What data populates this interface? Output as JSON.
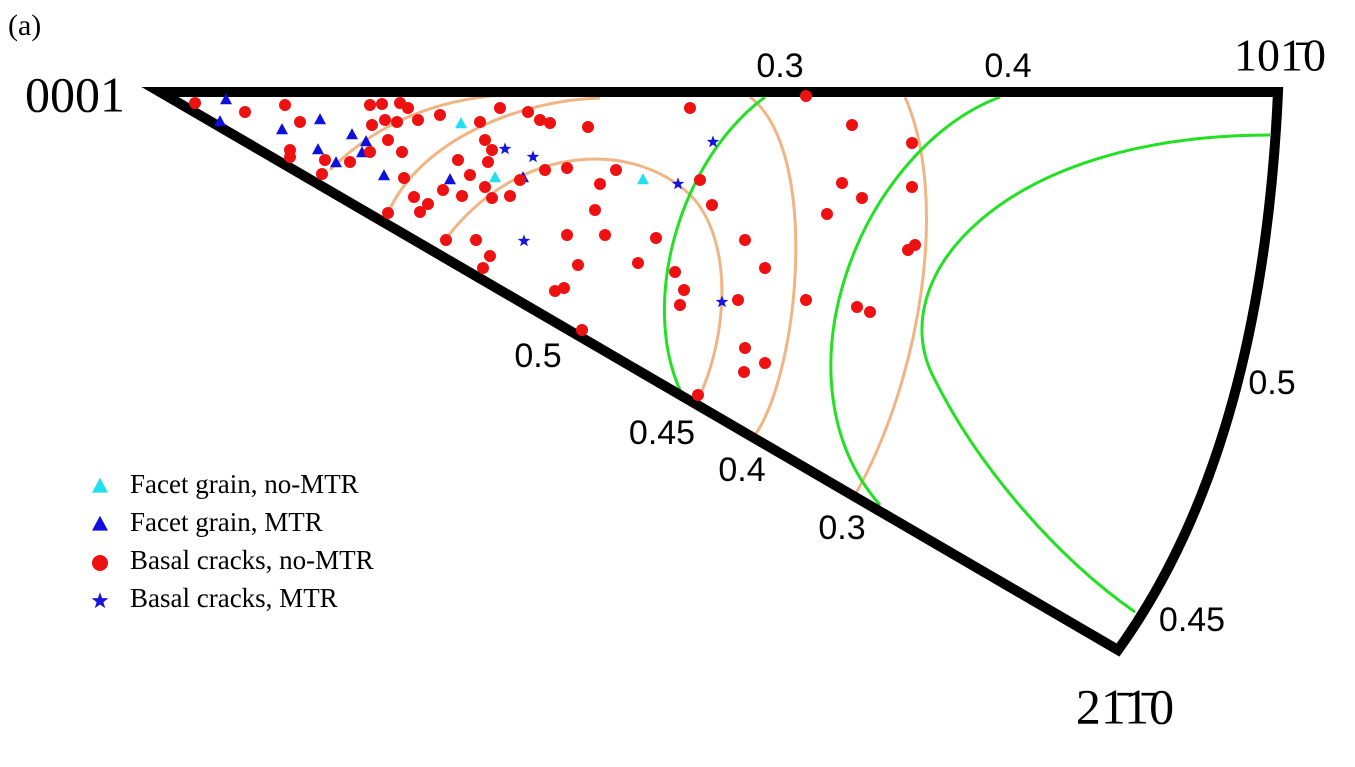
{
  "chart_data": {
    "type": "scatter",
    "label": "(a)",
    "corner_labels": [
      "0001",
      "101̄0",
      "21̄1̄0"
    ],
    "contour_labels": [
      "0.3",
      "0.4",
      "0.5",
      "0.5",
      "0.45",
      "0.4",
      "0.3",
      "0.45"
    ],
    "xlim": [
      0,
      1355
    ],
    "ylim": [
      767,
      0
    ],
    "series": [
      {
        "name": "Facet grain, no-MTR",
        "color": "#22dff0",
        "marker": "triangle",
        "x": [
          461,
          495,
          643
        ],
        "y": [
          124,
          178,
          180
        ]
      },
      {
        "name": "Facet grain, MTR",
        "color": "#1010dd",
        "marker": "triangle",
        "x": [
          226,
          220,
          282,
          320,
          352,
          366,
          318,
          336,
          362,
          384,
          450,
          523
        ],
        "y": [
          100,
          122,
          130,
          120,
          135,
          142,
          150,
          163,
          153,
          176,
          180,
          178
        ]
      },
      {
        "name": "Basal cracks, no-MTR",
        "color": "#ee1111",
        "marker": "circle",
        "x": [
          195,
          245,
          285,
          300,
          290,
          290,
          325,
          322,
          350,
          370,
          382,
          400,
          408,
          372,
          385,
          397,
          418,
          440,
          388,
          370,
          402,
          404,
          388,
          414,
          428,
          420,
          443,
          458,
          462,
          480,
          485,
          492,
          488,
          500,
          528,
          540,
          550,
          470,
          485,
          492,
          510,
          520,
          545,
          567,
          588,
          616,
          600,
          595,
          567,
          605,
          656,
          638,
          675,
          684,
          680,
          564,
          555,
          578,
          582,
          476,
          490,
          483,
          446,
          690,
          700,
          712,
          745,
          765,
          738,
          745,
          765,
          744,
          806,
          852,
          842,
          862,
          827,
          912,
          912,
          915,
          908,
          806,
          857,
          870,
          698
        ],
        "y": [
          103,
          112,
          105,
          122,
          150,
          157,
          160,
          174,
          162,
          105,
          104,
          103,
          108,
          125,
          120,
          122,
          120,
          115,
          140,
          152,
          152,
          178,
          213,
          197,
          204,
          212,
          190,
          160,
          196,
          122,
          140,
          150,
          162,
          108,
          112,
          120,
          123,
          175,
          187,
          198,
          196,
          180,
          170,
          168,
          127,
          170,
          184,
          210,
          235,
          235,
          238,
          263,
          272,
          290,
          305,
          288,
          291,
          265,
          330,
          240,
          256,
          268,
          240,
          108,
          180,
          205,
          240,
          268,
          300,
          348,
          363,
          372,
          96,
          125,
          183,
          198,
          214,
          143,
          187,
          245,
          250,
          300,
          307,
          312,
          395
        ]
      },
      {
        "name": "Basal cracks, MTR",
        "color": "#1515dd",
        "marker": "star",
        "x": [
          505,
          533,
          713,
          678,
          524,
          722
        ],
        "y": [
          149,
          157,
          142,
          184,
          241,
          302
        ]
      }
    ]
  }
}
